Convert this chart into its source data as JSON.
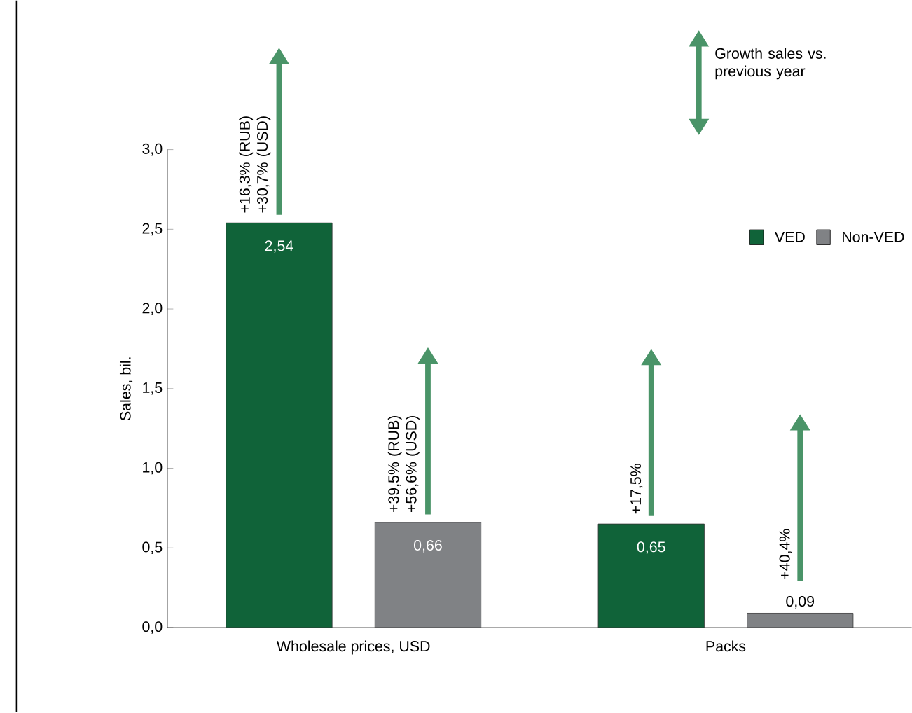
{
  "chart_data": {
    "type": "bar",
    "ylabel": "Sales, bil.",
    "categories": [
      "Wholesale prices, USD",
      "Packs"
    ],
    "series": [
      {
        "name": "VED",
        "color": "#106339",
        "values": [
          2.54,
          0.65
        ],
        "value_labels": [
          "2,54",
          "0,65"
        ]
      },
      {
        "name": "Non-VED",
        "color": "#808285",
        "values": [
          0.66,
          0.09
        ],
        "value_labels": [
          "0,66",
          "0,09"
        ]
      }
    ],
    "ylim": [
      0,
      3.0
    ],
    "yticks": [
      {
        "value": 0,
        "label": "0,0"
      },
      {
        "value": 0.5,
        "label": "0,5"
      },
      {
        "value": 1.0,
        "label": "1,0"
      },
      {
        "value": 1.5,
        "label": "1,5"
      },
      {
        "value": 2.0,
        "label": "2,0"
      },
      {
        "value": 2.5,
        "label": "2,5"
      },
      {
        "value": 3.0,
        "label": "3,0"
      }
    ],
    "legend": "top right",
    "annotations": [
      "Growth sales vs. previous year",
      "+16,3% (RUB) +30,7% (USD)",
      "+39,5% (RUB) +56,6% (USD)",
      "+17,5%",
      "+40,4%"
    ]
  }
}
